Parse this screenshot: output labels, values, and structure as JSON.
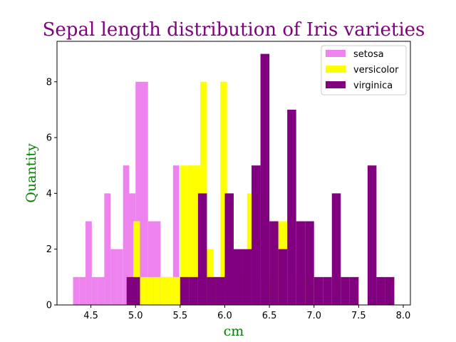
{
  "chart_data": {
    "type": "bar",
    "title": "Sepal length distribution of Iris varieties",
    "xlabel": "cm",
    "ylabel": "Quantity",
    "xlim": [
      4.12,
      8.08
    ],
    "ylim": [
      0,
      9.45
    ],
    "x_ticks": [
      4.5,
      5.0,
      5.5,
      6.0,
      6.5,
      7.0,
      7.5,
      8.0
    ],
    "x_tick_labels": [
      "4.5",
      "5.0",
      "5.5",
      "6.0",
      "6.5",
      "7.0",
      "7.5",
      "8.0"
    ],
    "y_ticks": [
      0,
      2,
      4,
      6,
      8
    ],
    "y_tick_labels": [
      "0",
      "2",
      "4",
      "6",
      "8"
    ],
    "grid": false,
    "legend_position": "top-right",
    "colors": {
      "title": "#800080",
      "axis_labels": "#008000",
      "axes": "#000000"
    },
    "series": [
      {
        "name": "setosa",
        "color": "#ee82ee",
        "bins": [
          {
            "x0": 4.3,
            "x1": 4.37,
            "count": 1
          },
          {
            "x0": 4.37,
            "x1": 4.44,
            "count": 1
          },
          {
            "x0": 4.44,
            "x1": 4.51,
            "count": 3
          },
          {
            "x0": 4.51,
            "x1": 4.58,
            "count": 1
          },
          {
            "x0": 4.58,
            "x1": 4.65,
            "count": 1
          },
          {
            "x0": 4.65,
            "x1": 4.72,
            "count": 4
          },
          {
            "x0": 4.72,
            "x1": 4.79,
            "count": 2
          },
          {
            "x0": 4.79,
            "x1": 4.86,
            "count": 2
          },
          {
            "x0": 4.86,
            "x1": 4.93,
            "count": 5
          },
          {
            "x0": 4.93,
            "x1": 5.0,
            "count": 4
          },
          {
            "x0": 5.0,
            "x1": 5.07,
            "count": 8
          },
          {
            "x0": 5.07,
            "x1": 5.14,
            "count": 8
          },
          {
            "x0": 5.14,
            "x1": 5.21,
            "count": 3
          },
          {
            "x0": 5.21,
            "x1": 5.28,
            "count": 3
          },
          {
            "x0": 5.28,
            "x1": 5.35,
            "count": 1
          },
          {
            "x0": 5.35,
            "x1": 5.42,
            "count": 1
          },
          {
            "x0": 5.42,
            "x1": 5.49,
            "count": 5
          },
          {
            "x0": 5.49,
            "x1": 5.56,
            "count": 1
          },
          {
            "x0": 5.56,
            "x1": 5.63,
            "count": 1
          },
          {
            "x0": 5.63,
            "x1": 5.7,
            "count": 1
          },
          {
            "x0": 5.7,
            "x1": 5.77,
            "count": 1
          }
        ]
      },
      {
        "name": "versicolor",
        "color": "#ffff00",
        "bins": [
          {
            "x0": 4.9,
            "x1": 4.975,
            "count": 1
          },
          {
            "x0": 4.975,
            "x1": 5.05,
            "count": 3
          },
          {
            "x0": 5.05,
            "x1": 5.125,
            "count": 1
          },
          {
            "x0": 5.125,
            "x1": 5.2,
            "count": 1
          },
          {
            "x0": 5.2,
            "x1": 5.275,
            "count": 1
          },
          {
            "x0": 5.275,
            "x1": 5.35,
            "count": 1
          },
          {
            "x0": 5.35,
            "x1": 5.425,
            "count": 1
          },
          {
            "x0": 5.425,
            "x1": 5.5,
            "count": 1
          },
          {
            "x0": 5.5,
            "x1": 5.575,
            "count": 5
          },
          {
            "x0": 5.575,
            "x1": 5.65,
            "count": 5
          },
          {
            "x0": 5.65,
            "x1": 5.725,
            "count": 5
          },
          {
            "x0": 5.725,
            "x1": 5.8,
            "count": 8
          },
          {
            "x0": 5.8,
            "x1": 5.875,
            "count": 2
          },
          {
            "x0": 5.875,
            "x1": 5.95,
            "count": 1
          },
          {
            "x0": 5.95,
            "x1": 6.025,
            "count": 8
          },
          {
            "x0": 6.025,
            "x1": 6.1,
            "count": 4
          },
          {
            "x0": 6.1,
            "x1": 6.175,
            "count": 2
          },
          {
            "x0": 6.175,
            "x1": 6.25,
            "count": 1
          },
          {
            "x0": 6.25,
            "x1": 6.325,
            "count": 4
          },
          {
            "x0": 6.325,
            "x1": 6.4,
            "count": 1
          },
          {
            "x0": 6.4,
            "x1": 6.475,
            "count": 1
          },
          {
            "x0": 6.475,
            "x1": 6.55,
            "count": 1
          },
          {
            "x0": 6.55,
            "x1": 6.625,
            "count": 3
          },
          {
            "x0": 6.625,
            "x1": 6.7,
            "count": 3
          },
          {
            "x0": 6.7,
            "x1": 6.775,
            "count": 1
          },
          {
            "x0": 6.775,
            "x1": 6.85,
            "count": 1
          },
          {
            "x0": 6.85,
            "x1": 6.925,
            "count": 1
          },
          {
            "x0": 6.925,
            "x1": 7.0,
            "count": 1
          }
        ]
      },
      {
        "name": "virginica",
        "color": "#800080",
        "bins": [
          {
            "x0": 4.9,
            "x1": 5.05,
            "count": 1
          },
          {
            "x0": 5.05,
            "x1": 5.2,
            "count": 0
          },
          {
            "x0": 5.2,
            "x1": 5.35,
            "count": 0
          },
          {
            "x0": 5.35,
            "x1": 5.5,
            "count": 0
          },
          {
            "x0": 5.5,
            "x1": 5.6,
            "count": 1
          },
          {
            "x0": 5.6,
            "x1": 5.7,
            "count": 1
          },
          {
            "x0": 5.7,
            "x1": 5.8,
            "count": 4
          },
          {
            "x0": 5.8,
            "x1": 5.9,
            "count": 1
          },
          {
            "x0": 5.9,
            "x1": 6.0,
            "count": 1
          },
          {
            "x0": 6.0,
            "x1": 6.1,
            "count": 4
          },
          {
            "x0": 6.1,
            "x1": 6.2,
            "count": 2
          },
          {
            "x0": 6.2,
            "x1": 6.3,
            "count": 2
          },
          {
            "x0": 6.3,
            "x1": 6.4,
            "count": 5
          },
          {
            "x0": 6.4,
            "x1": 6.5,
            "count": 9
          },
          {
            "x0": 6.5,
            "x1": 6.6,
            "count": 3
          },
          {
            "x0": 6.6,
            "x1": 6.7,
            "count": 2
          },
          {
            "x0": 6.7,
            "x1": 6.8,
            "count": 7
          },
          {
            "x0": 6.8,
            "x1": 6.9,
            "count": 3
          },
          {
            "x0": 6.9,
            "x1": 7.0,
            "count": 3
          },
          {
            "x0": 7.0,
            "x1": 7.1,
            "count": 1
          },
          {
            "x0": 7.1,
            "x1": 7.2,
            "count": 1
          },
          {
            "x0": 7.2,
            "x1": 7.3,
            "count": 4
          },
          {
            "x0": 7.3,
            "x1": 7.4,
            "count": 1
          },
          {
            "x0": 7.4,
            "x1": 7.5,
            "count": 1
          },
          {
            "x0": 7.5,
            "x1": 7.6,
            "count": 0
          },
          {
            "x0": 7.6,
            "x1": 7.7,
            "count": 5
          },
          {
            "x0": 7.7,
            "x1": 7.8,
            "count": 1
          },
          {
            "x0": 7.8,
            "x1": 7.9,
            "count": 1
          }
        ]
      }
    ]
  }
}
